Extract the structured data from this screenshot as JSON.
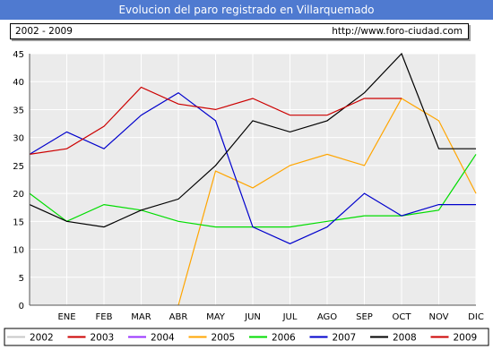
{
  "title": "Evolucion del paro registrado en Villarquemado",
  "header": {
    "period": "2002 - 2009",
    "url": "http://www.foro-ciudad.com"
  },
  "chart_data": {
    "type": "line",
    "categories": [
      "ENE",
      "FEB",
      "MAR",
      "ABR",
      "MAY",
      "JUN",
      "JUL",
      "AGO",
      "SEP",
      "OCT",
      "NOV",
      "DIC"
    ],
    "ylim": [
      0,
      45
    ],
    "yticks": [
      0,
      5,
      10,
      15,
      20,
      25,
      30,
      35,
      40,
      45
    ],
    "grid": true,
    "legend_position": "bottom",
    "series": [
      {
        "name": "2002",
        "color": "#c8c8c8",
        "values": [
          null,
          null,
          null,
          null,
          null,
          null,
          null,
          null,
          null,
          null,
          null,
          null
        ]
      },
      {
        "name": "2003",
        "color": "#cc0000",
        "values": [
          null,
          null,
          null,
          null,
          null,
          null,
          null,
          null,
          null,
          null,
          null,
          null
        ]
      },
      {
        "name": "2004",
        "color": "#9933ff",
        "values": [
          null,
          null,
          null,
          null,
          null,
          null,
          null,
          null,
          null,
          null,
          null,
          null
        ]
      },
      {
        "name": "2005",
        "color": "#ffa500",
        "values": [
          null,
          null,
          null,
          null,
          24,
          21,
          25,
          27,
          25,
          37,
          33,
          20
        ]
      },
      {
        "name": "2006",
        "color": "#00dd00",
        "values": [
          15,
          18,
          17,
          15,
          14,
          14,
          14,
          15,
          16,
          16,
          17,
          27
        ]
      },
      {
        "name": "2007",
        "color": "#0000cc",
        "values": [
          31,
          28,
          34,
          38,
          33,
          14,
          11,
          14,
          20,
          16,
          18,
          18
        ]
      },
      {
        "name": "2008",
        "color": "#000000",
        "values": [
          15,
          14,
          17,
          19,
          25,
          33,
          31,
          33,
          38,
          45,
          28,
          28
        ]
      },
      {
        "name": "2009",
        "color": "#cc0000",
        "values": [
          28,
          32,
          39,
          36,
          35,
          37,
          34,
          34,
          37,
          37,
          null,
          null
        ]
      }
    ]
  }
}
